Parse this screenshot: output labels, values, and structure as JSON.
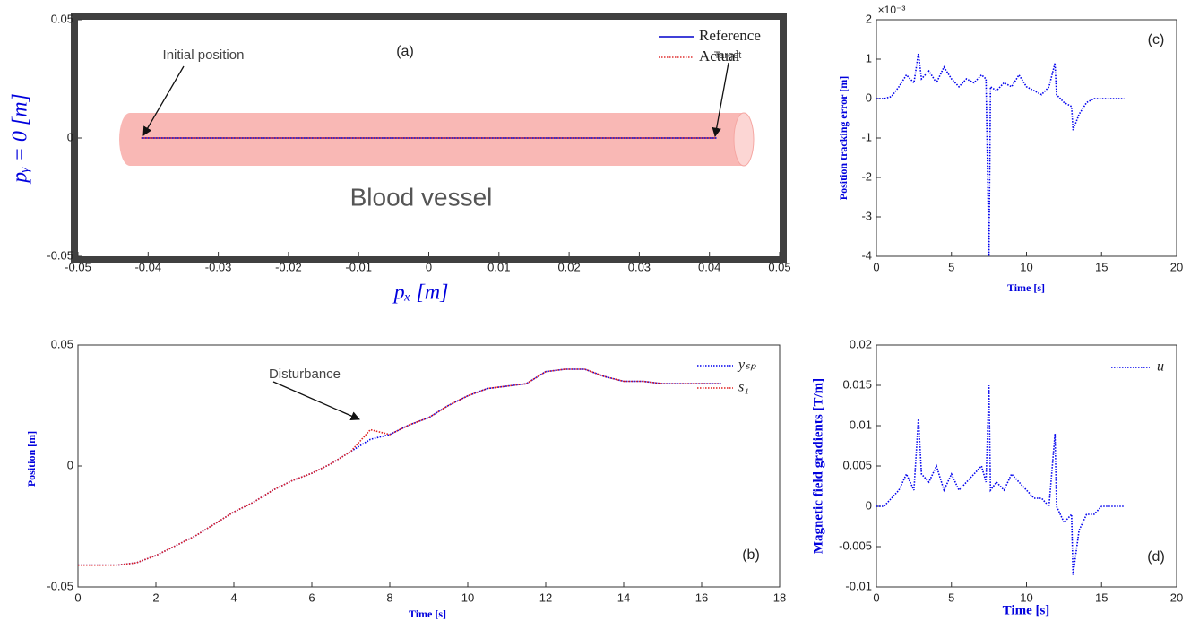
{
  "chart_data": [
    {
      "type": "line",
      "panel_label": "(a)",
      "x_label": "pₓ [m]",
      "y_label": "pᵧ = 0 [m]",
      "xlim": [
        -0.05,
        0.05
      ],
      "xticks": [
        -0.05,
        -0.04,
        -0.03,
        -0.02,
        -0.01,
        0,
        0.01,
        0.02,
        0.03,
        0.04,
        0.05
      ],
      "ylim": [
        -0.05,
        0.05
      ],
      "yticks": [
        -0.05,
        0,
        0.05
      ],
      "legend": "upper right",
      "annotations": [
        "Initial position",
        "Target",
        "Blood vessel"
      ],
      "series": [
        {
          "name": "Reference",
          "color": "#0000cc",
          "style": "solid",
          "x": [
            -0.041,
            0.041
          ],
          "values": [
            0,
            0
          ]
        },
        {
          "name": "Actual",
          "color": "#e03030",
          "style": "dotted",
          "x": [
            -0.041,
            0.041
          ],
          "values": [
            0,
            0
          ]
        }
      ]
    },
    {
      "type": "line",
      "panel_label": "(b)",
      "x_label": "Time [s]",
      "y_label": "Position [m]",
      "xlim": [
        0,
        18
      ],
      "xticks": [
        0,
        2,
        4,
        6,
        8,
        10,
        12,
        14,
        16,
        18
      ],
      "ylim": [
        -0.05,
        0.05
      ],
      "yticks": [
        -0.05,
        0,
        0.05
      ],
      "legend": "upper right",
      "annotations": [
        "Disturbance"
      ],
      "series": [
        {
          "name": "yₛₚ",
          "color": "#0000ee",
          "style": "dotted",
          "x": [
            0,
            0.5,
            1,
            1.5,
            2,
            2.5,
            3,
            3.5,
            4,
            4.5,
            5,
            5.5,
            6,
            6.5,
            7,
            7.5,
            8,
            8.5,
            9,
            9.5,
            10,
            10.5,
            11,
            11.5,
            12,
            12.5,
            13,
            13.5,
            14,
            14.5,
            15,
            15.5,
            16,
            16.5
          ],
          "values": [
            -0.041,
            -0.041,
            -0.041,
            -0.04,
            -0.037,
            -0.033,
            -0.029,
            -0.024,
            -0.019,
            -0.015,
            -0.01,
            -0.006,
            -0.003,
            0.001,
            0.006,
            0.011,
            0.013,
            0.017,
            0.02,
            0.025,
            0.029,
            0.032,
            0.033,
            0.034,
            0.039,
            0.04,
            0.04,
            0.037,
            0.035,
            0.035,
            0.034,
            0.034,
            0.034,
            0.034
          ]
        },
        {
          "name": "s₁",
          "color": "#e02020",
          "style": "dotted",
          "x": [
            0,
            0.5,
            1,
            1.5,
            2,
            2.5,
            3,
            3.5,
            4,
            4.5,
            5,
            5.5,
            6,
            6.5,
            7,
            7.5,
            8,
            8.5,
            9,
            9.5,
            10,
            10.5,
            11,
            11.5,
            12,
            12.5,
            13,
            13.5,
            14,
            14.5,
            15,
            15.5,
            16,
            16.5
          ],
          "values": [
            -0.041,
            -0.041,
            -0.041,
            -0.04,
            -0.037,
            -0.033,
            -0.029,
            -0.024,
            -0.019,
            -0.015,
            -0.01,
            -0.006,
            -0.003,
            0.001,
            0.006,
            0.015,
            0.013,
            0.017,
            0.02,
            0.025,
            0.029,
            0.032,
            0.033,
            0.034,
            0.039,
            0.04,
            0.04,
            0.037,
            0.035,
            0.035,
            0.034,
            0.034,
            0.034,
            0.034
          ]
        }
      ]
    },
    {
      "type": "line",
      "panel_label": "(c)",
      "x_label": "Time [s]",
      "y_label": "Position tracking error [m]",
      "y_exponent_label": "×10⁻³",
      "xlim": [
        0,
        20
      ],
      "xticks": [
        0,
        5,
        10,
        15,
        20
      ],
      "ylim": [
        -4,
        2
      ],
      "yticks": [
        -4,
        -3,
        -2,
        -1,
        0,
        1,
        2
      ],
      "series": [
        {
          "color": "#0000ee",
          "style": "dotted",
          "x": [
            0,
            0.5,
            1,
            1.5,
            2,
            2.5,
            2.8,
            3,
            3.5,
            4,
            4.5,
            5,
            5.5,
            6,
            6.5,
            7,
            7.3,
            7.5,
            7.6,
            8,
            8.5,
            9,
            9.5,
            10,
            10.5,
            11,
            11.5,
            11.9,
            12,
            12.5,
            13,
            13.1,
            13.5,
            14,
            14.5,
            15,
            15.5,
            16,
            16.5
          ],
          "values": [
            0,
            0,
            0.05,
            0.3,
            0.6,
            0.4,
            1.15,
            0.5,
            0.7,
            0.4,
            0.8,
            0.5,
            0.3,
            0.5,
            0.4,
            0.6,
            0.5,
            -4,
            0.3,
            0.2,
            0.4,
            0.3,
            0.6,
            0.3,
            0.2,
            0.1,
            0.3,
            0.9,
            0.1,
            -0.1,
            -0.2,
            -0.8,
            -0.4,
            -0.1,
            0,
            0,
            0,
            0,
            0
          ]
        }
      ]
    },
    {
      "type": "line",
      "panel_label": "(d)",
      "x_label": "Time [s]",
      "y_label": "Magnetic field gradients [T/m]",
      "xlim": [
        0,
        20
      ],
      "xticks": [
        0,
        5,
        10,
        15,
        20
      ],
      "ylim": [
        -0.01,
        0.02
      ],
      "yticks": [
        -0.01,
        -0.005,
        0,
        0.005,
        0.01,
        0.015,
        0.02
      ],
      "legend": "upper right",
      "series": [
        {
          "name": "u",
          "color": "#0000ee",
          "style": "dotted",
          "x": [
            0,
            0.5,
            1,
            1.5,
            2,
            2.5,
            2.8,
            3,
            3.5,
            4,
            4.5,
            5,
            5.5,
            6,
            6.5,
            7,
            7.3,
            7.5,
            7.6,
            8,
            8.5,
            9,
            9.5,
            10,
            10.5,
            11,
            11.5,
            11.9,
            12,
            12.5,
            13,
            13.1,
            13.5,
            14,
            14.5,
            15,
            15.5,
            16,
            16.5
          ],
          "values": [
            0,
            0,
            0.001,
            0.002,
            0.004,
            0.002,
            0.011,
            0.004,
            0.003,
            0.005,
            0.002,
            0.004,
            0.002,
            0.003,
            0.004,
            0.005,
            0.003,
            0.015,
            0.002,
            0.003,
            0.002,
            0.004,
            0.003,
            0.002,
            0.001,
            0.001,
            0,
            0.009,
            0,
            -0.002,
            -0.001,
            -0.0085,
            -0.003,
            -0.001,
            -0.001,
            0,
            0,
            0,
            0
          ]
        }
      ]
    }
  ]
}
